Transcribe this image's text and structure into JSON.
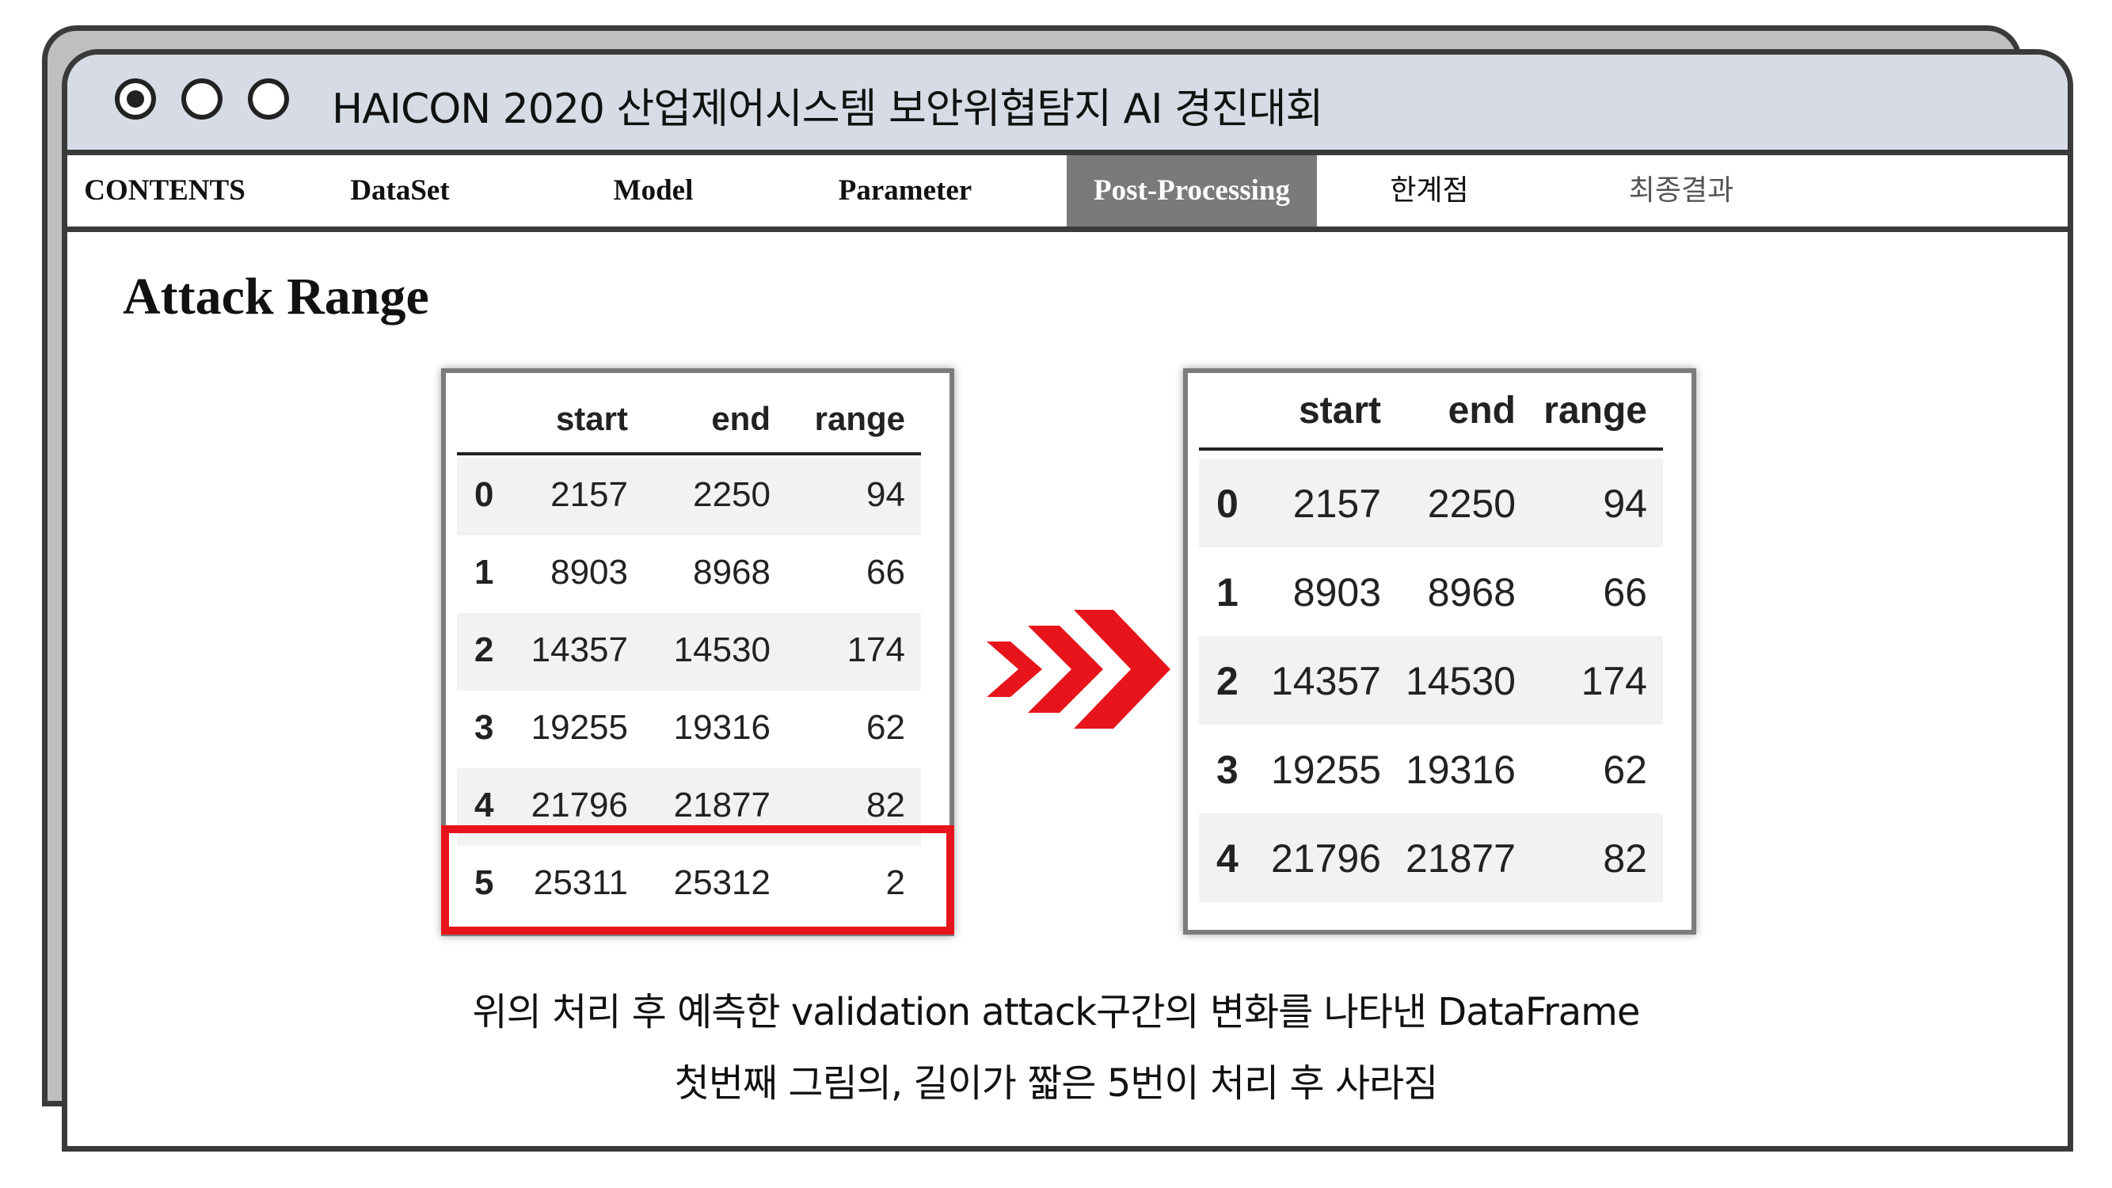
{
  "window": {
    "title": "HAICON 2020 산업제어시스템 보안위협탐지 AI 경진대회"
  },
  "nav": {
    "items": [
      {
        "label": "CONTENTS"
      },
      {
        "label": "DataSet"
      },
      {
        "label": "Model"
      },
      {
        "label": "Parameter"
      },
      {
        "label": "Post-Processing",
        "active": true
      },
      {
        "label": "한계점"
      },
      {
        "label": "최종결과"
      }
    ]
  },
  "content": {
    "title": "Attack Range"
  },
  "before_table": {
    "columns": [
      "start",
      "end",
      "range"
    ],
    "rows": [
      {
        "idx": "0",
        "start": "2157",
        "end": "2250",
        "range": "94"
      },
      {
        "idx": "1",
        "start": "8903",
        "end": "8968",
        "range": "66"
      },
      {
        "idx": "2",
        "start": "14357",
        "end": "14530",
        "range": "174"
      },
      {
        "idx": "3",
        "start": "19255",
        "end": "19316",
        "range": "62"
      },
      {
        "idx": "4",
        "start": "21796",
        "end": "21877",
        "range": "82"
      },
      {
        "idx": "5",
        "start": "25311",
        "end": "25312",
        "range": "2"
      }
    ],
    "highlight_row": 5,
    "highlight_color": "#e8141c"
  },
  "after_table": {
    "columns": [
      "start",
      "end",
      "range"
    ],
    "rows": [
      {
        "idx": "0",
        "start": "2157",
        "end": "2250",
        "range": "94"
      },
      {
        "idx": "1",
        "start": "8903",
        "end": "8968",
        "range": "66"
      },
      {
        "idx": "2",
        "start": "14357",
        "end": "14530",
        "range": "174"
      },
      {
        "idx": "3",
        "start": "19255",
        "end": "19316",
        "range": "62"
      },
      {
        "idx": "4",
        "start": "21796",
        "end": "21877",
        "range": "82"
      }
    ]
  },
  "arrow": {
    "icon": "chevron-right-icon",
    "color": "#e8141c"
  },
  "caption": {
    "line1": "위의 처리 후 예측한 validation attack구간의 변화를 나타낸 DataFrame",
    "line2": "첫번째 그림의, 길이가 짧은 5번이 처리 후 사라짐"
  }
}
